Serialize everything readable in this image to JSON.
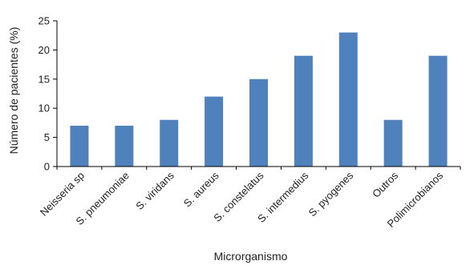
{
  "chart_data": {
    "type": "bar",
    "categories": [
      "Neisseria sp",
      "S. pneumoniae",
      "S. viridans",
      "S. aureus",
      "S. constelatus",
      "S. intermedius",
      "S. pyogenes",
      "Outros",
      "Polimicrobianos"
    ],
    "values": [
      7,
      7,
      8,
      12,
      15,
      19,
      23,
      8,
      19
    ],
    "title": "",
    "xlabel": "Microrganismo",
    "ylabel": "Número de pacientes (%)",
    "ylim": [
      0,
      25
    ],
    "yticks": [
      0,
      5,
      10,
      15,
      20,
      25
    ],
    "grid": false,
    "legend": "none",
    "bar_color": "#4f81bd"
  }
}
